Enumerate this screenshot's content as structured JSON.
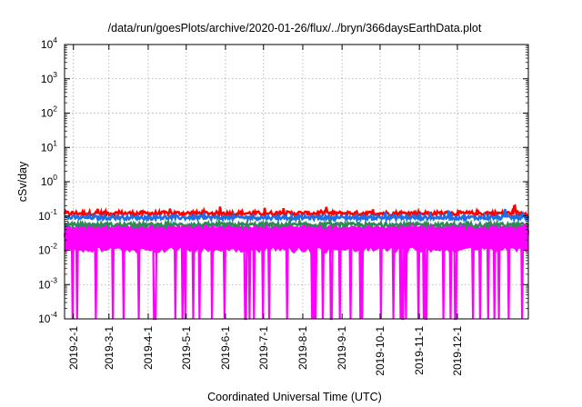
{
  "chart_data": {
    "type": "line",
    "title": "/data/run/goesPlots/archive/2020-01-26/flux/../bryn/366daysEarthData.plot",
    "xlabel": "Coordinated Universal Time (UTC)",
    "ylabel": "cSv/day",
    "yscale": "log",
    "ylim": [
      0.0001,
      10000
    ],
    "xlim": [
      "2019-01-25",
      "2020-01-26"
    ],
    "grid": true,
    "y_ticks": [
      {
        "base": "10",
        "exp": "-4",
        "value": 0.0001
      },
      {
        "base": "10",
        "exp": "-3",
        "value": 0.001
      },
      {
        "base": "10",
        "exp": "-2",
        "value": 0.01
      },
      {
        "base": "10",
        "exp": "-1",
        "value": 0.1
      },
      {
        "base": "10",
        "exp": "0",
        "value": 1
      },
      {
        "base": "10",
        "exp": "1",
        "value": 10
      },
      {
        "base": "10",
        "exp": "2",
        "value": 100
      },
      {
        "base": "10",
        "exp": "3",
        "value": 1000
      },
      {
        "base": "10",
        "exp": "4",
        "value": 10000
      }
    ],
    "x_ticks": [
      {
        "label": "2019-2-1",
        "date": "2019-02-01"
      },
      {
        "label": "2019-3-1",
        "date": "2019-03-01"
      },
      {
        "label": "2019-4-1",
        "date": "2019-04-01"
      },
      {
        "label": "2019-5-1",
        "date": "2019-05-01"
      },
      {
        "label": "2019-6-1",
        "date": "2019-06-01"
      },
      {
        "label": "2019-7-1",
        "date": "2019-07-01"
      },
      {
        "label": "2019-8-1",
        "date": "2019-08-01"
      },
      {
        "label": "2019-9-1",
        "date": "2019-09-01"
      },
      {
        "label": "2019-10-1",
        "date": "2019-10-01"
      },
      {
        "label": "2019-11-1",
        "date": "2019-11-01"
      },
      {
        "label": "2019-12-1",
        "date": "2019-12-01"
      }
    ],
    "series": [
      {
        "color": "#ff0000",
        "approx_value": 0.12,
        "range": [
          0.1,
          0.21
        ]
      },
      {
        "color": "#1e6fe6",
        "approx_value": 0.09,
        "range": [
          0.07,
          0.16
        ]
      },
      {
        "color": "#2e8b57",
        "approx_value": 0.055,
        "range": [
          0.045,
          0.07
        ]
      },
      {
        "color": "#ff00ff",
        "approx_value": 0.03,
        "range": [
          0.0001,
          0.06
        ]
      }
    ]
  }
}
